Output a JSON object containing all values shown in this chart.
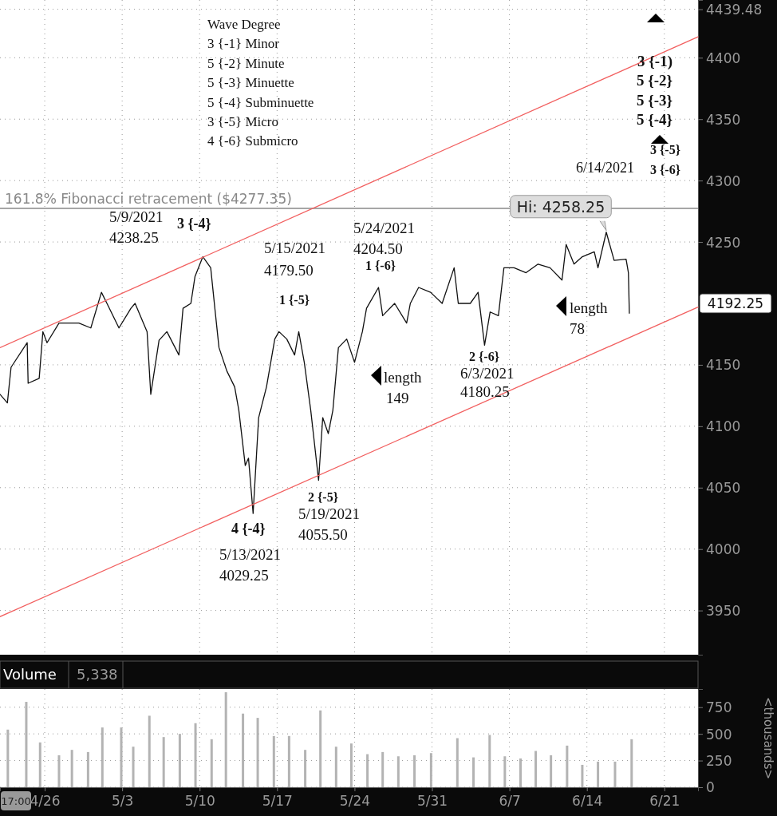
{
  "chart_data": [
    {
      "type": "line",
      "xlim": [
        "2021-04-21T23:00",
        "2021-06-24T01:00"
      ],
      "ylim": [
        3914,
        4447
      ],
      "xticks": [
        {
          "value": "2021-04-26",
          "label": null
        },
        {
          "value": "2021-05-03",
          "label": null
        },
        {
          "value": "2021-05-10",
          "label": null
        },
        {
          "value": "2021-05-17",
          "label": null
        },
        {
          "value": "2021-05-24",
          "label": null
        },
        {
          "value": "2021-05-31",
          "label": null
        },
        {
          "value": "2021-06-07",
          "label": null
        },
        {
          "value": "2021-06-14",
          "label": null
        },
        {
          "value": "2021-06-21",
          "label": null
        }
      ],
      "yticks": [
        3950,
        4000,
        4050,
        4100,
        4150,
        4250,
        4300,
        4350,
        4400,
        {
          "value": 4439.48,
          "label": "4439.48"
        }
      ],
      "tick_labels": "y",
      "grid": true,
      "series": [
        {
          "color": "#111111",
          "x": [
            "2021-04-21T23:00",
            "2021-04-22T15:00",
            "2021-04-22T23:00",
            "2021-04-24T10:00",
            "2021-04-24T12:00",
            "2021-04-25T12:00",
            "2021-04-25T20:00",
            "2021-04-26T05:00",
            "2021-04-27T07:00",
            "2021-04-29T02:00",
            "2021-04-30T04:00",
            "2021-05-01T03:00",
            "2021-05-01T15:00",
            "2021-05-02T17:00",
            "2021-05-03T19:00",
            "2021-05-04T04:00",
            "2021-05-05T06:00",
            "2021-05-05T14:00",
            "2021-05-06T08:00",
            "2021-05-07T01:00",
            "2021-05-08T03:00",
            "2021-05-08T12:00",
            "2021-05-09T05:00",
            "2021-05-09T14:00",
            "2021-05-10T07:00",
            "2021-05-11T00:00",
            "2021-05-11T09:00",
            "2021-05-11T18:00",
            "2021-05-12T11:00",
            "2021-05-13T04:00",
            "2021-05-13T13:00",
            "2021-05-14T03:00",
            "2021-05-14T10:00",
            "2021-05-14T20:00",
            "2021-05-15T08:00",
            "2021-05-16T01:00",
            "2021-05-16T19:00",
            "2021-05-17T04:00",
            "2021-05-17T21:00",
            "2021-05-18T14:00",
            "2021-05-18T23:00",
            "2021-05-19T11:00",
            "2021-05-20T01:00",
            "2021-05-20T18:00",
            "2021-05-21T03:00",
            "2021-05-21T15:00",
            "2021-05-22T01:00",
            "2021-05-22T13:00",
            "2021-05-23T07:00",
            "2021-05-24T00:00",
            "2021-05-24T17:00",
            "2021-05-25T02:00",
            "2021-05-26T04:00",
            "2021-05-26T13:00",
            "2021-05-27T15:00",
            "2021-05-28T17:00",
            "2021-05-29T01:00",
            "2021-05-29T19:00",
            "2021-05-30T21:00",
            "2021-05-31T22:00",
            "2021-06-02T00:00",
            "2021-06-02T09:00",
            "2021-06-03T11:00",
            "2021-06-04T04:00",
            "2021-06-04T18:00",
            "2021-06-05T06:00",
            "2021-06-06T00:00",
            "2021-06-06T12:00",
            "2021-06-07T10:00",
            "2021-06-08T12:00",
            "2021-06-09T14:00",
            "2021-06-10T16:00",
            "2021-06-11T18:00",
            "2021-06-12T03:00",
            "2021-06-12T20:00",
            "2021-06-13T14:00",
            "2021-06-14T16:00",
            "2021-06-15T00:00",
            "2021-06-15T18:00",
            "2021-06-16T11:00",
            "2021-06-17T13:00",
            "2021-06-17T18:00",
            "2021-06-17T20:00"
          ],
          "values": [
            4126,
            4119,
            4148,
            4168,
            4135,
            4139,
            4177,
            4168,
            4184,
            4184,
            4180,
            4209,
            4200,
            4180,
            4196,
            4200,
            4177,
            4126,
            4170,
            4177,
            4158,
            4196,
            4200,
            4222,
            4238,
            4229,
            4196,
            4164,
            4145,
            4132,
            4113,
            4068,
            4074,
            4029,
            4107,
            4132,
            4171,
            4177,
            4171,
            4158,
            4177,
            4152,
            4113,
            4056,
            4107,
            4094,
            4113,
            4164,
            4171,
            4152,
            4177,
            4196,
            4213,
            4190,
            4200,
            4184,
            4200,
            4213,
            4209,
            4200,
            4229,
            4200,
            4200,
            4209,
            4166,
            4193,
            4190,
            4229,
            4229,
            4225,
            4232,
            4229,
            4219,
            4248,
            4232,
            4238,
            4242,
            4229,
            4258,
            4235,
            4236,
            4225,
            4192
          ]
        },
        {
          "color": "#f26060",
          "x": [
            "2021-04-21T23:00",
            "2021-06-24T01:00"
          ],
          "values": [
            4164,
            4417
          ]
        },
        {
          "color": "#f26060",
          "x": [
            "2021-04-21T23:00",
            "2021-06-24T01:00"
          ],
          "values": [
            3945,
            4197
          ]
        }
      ],
      "ref_lines": [
        {
          "axis": "y",
          "value": 4277.35,
          "label": "161.8% Fibonacci retracement ($4277.35)",
          "color": "#888888"
        }
      ],
      "annotations": [
        "Wave Degree",
        "3 {-1} Minor",
        "5 {-2} Minute",
        "5 {-3} Minuette",
        "5 {-4} Subminuette",
        "3 {-5} Micro",
        "4 {-6} Submicro",
        "3 {-1)",
        "5 {-2}",
        "5 {-3}",
        "5 {-4}",
        "3 {-5}",
        "3 {-6}",
        "6/14/2021",
        "5/9/2021",
        "4238.25",
        "3 {-4}",
        "5/15/2021",
        "4179.50",
        "1 {-5}",
        "5/24/2021",
        "4204.50",
        "1 {-6}",
        "length",
        "149",
        "2 {-6}",
        "6/3/2021",
        "4180.25",
        "length",
        "78",
        "2 {-5}",
        "5/19/2021",
        "4055.50",
        "4 {-4}",
        "5/13/2021",
        "4029.25",
        {
          "text": "Hi: 4258.25",
          "x": "2021-06-15T18:00",
          "y": 4258
        },
        "4192.25"
      ]
    },
    {
      "type": "bar",
      "title": "Volume",
      "ylabel": "<thousands>",
      "color": "#b3b3b3",
      "xlim": [
        "2021-04-21T23:00",
        "2021-06-24T01:00"
      ],
      "ylim": [
        0,
        920
      ],
      "xticks": [
        {
          "value": "2021-04-26",
          "label": "4/26"
        },
        {
          "value": "2021-05-03",
          "label": "5/3"
        },
        {
          "value": "2021-05-10",
          "label": "5/10"
        },
        {
          "value": "2021-05-17",
          "label": "5/17"
        },
        {
          "value": "2021-05-24",
          "label": "5/24"
        },
        {
          "value": "2021-05-31",
          "label": "5/31"
        },
        {
          "value": "2021-06-07",
          "label": "6/7"
        },
        {
          "value": "2021-06-14",
          "label": "6/14"
        },
        {
          "value": "2021-06-21",
          "label": "6/21"
        }
      ],
      "yticks": [
        0,
        250,
        500,
        750
      ],
      "grid": true,
      "x": [
        "2021-04-22T16:00",
        "2021-04-24T08:00",
        "2021-04-25T14:00",
        "2021-04-27T07:00",
        "2021-04-28T11:00",
        "2021-04-29T22:00",
        "2021-05-01T05:00",
        "2021-05-02T22:00",
        "2021-05-04T00:00",
        "2021-05-05T11:00",
        "2021-05-06T18:00",
        "2021-05-08T05:00",
        "2021-05-09T15:00",
        "2021-05-11T02:00",
        "2021-05-12T09:00",
        "2021-05-13T22:00",
        "2021-05-15T06:00",
        "2021-05-16T17:00",
        "2021-05-18T02:00",
        "2021-05-19T13:00",
        "2021-05-20T22:00",
        "2021-05-22T08:00",
        "2021-05-23T17:00",
        "2021-05-25T04:00",
        "2021-05-26T13:00",
        "2021-05-27T23:00",
        "2021-05-29T10:00",
        "2021-05-30T22:00",
        "2021-06-02T07:00",
        "2021-06-03T18:00",
        "2021-06-05T05:00",
        "2021-06-06T14:00",
        "2021-06-08T00:00",
        "2021-06-09T09:00",
        "2021-06-10T18:00",
        "2021-06-12T05:00",
        "2021-06-13T14:00",
        "2021-06-15T00:00",
        "2021-06-16T13:00",
        "2021-06-18T01:00"
      ],
      "values": [
        540,
        800,
        420,
        300,
        350,
        330,
        560,
        560,
        380,
        670,
        470,
        500,
        600,
        450,
        890,
        690,
        650,
        480,
        480,
        350,
        720,
        380,
        410,
        310,
        330,
        290,
        300,
        320,
        460,
        280,
        490,
        290,
        270,
        340,
        300,
        390,
        210,
        240,
        240,
        450
      ],
      "annotations": [
        "5,338",
        "17:00"
      ]
    }
  ]
}
